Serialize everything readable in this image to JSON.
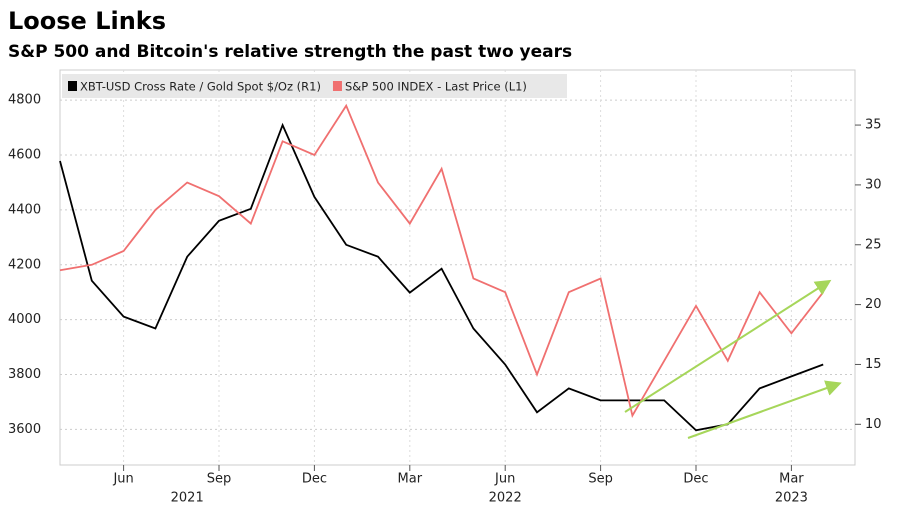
{
  "chart_data": {
    "type": "line",
    "title": "Loose Links",
    "subtitle": "S&P 500 and Bitcoin's relative strength the past two years",
    "x": [
      "2021-04",
      "2021-05",
      "2021-06",
      "2021-07",
      "2021-08",
      "2021-09",
      "2021-10",
      "2021-11",
      "2021-12",
      "2022-01",
      "2022-02",
      "2022-03",
      "2022-04",
      "2022-05",
      "2022-06",
      "2022-07",
      "2022-08",
      "2022-09",
      "2022-10",
      "2022-11",
      "2022-12",
      "2023-01",
      "2023-02",
      "2023-03",
      "2023-04"
    ],
    "xlim": [
      "2021-04",
      "2023-05"
    ],
    "xticks": [
      {
        "value": "2021-06",
        "label": "Jun"
      },
      {
        "value": "2021-09",
        "label": "Sep"
      },
      {
        "value": "2021-12",
        "label": "Dec"
      },
      {
        "value": "2022-03",
        "label": "Mar"
      },
      {
        "value": "2022-06",
        "label": "Jun"
      },
      {
        "value": "2022-09",
        "label": "Sep"
      },
      {
        "value": "2022-12",
        "label": "Dec"
      },
      {
        "value": "2023-03",
        "label": "Mar"
      }
    ],
    "x_year_labels": [
      {
        "value": "2021-08",
        "label": "2021"
      },
      {
        "value": "2022-06",
        "label": "2022"
      },
      {
        "value": "2023-03",
        "label": "2023"
      }
    ],
    "series": [
      {
        "name": "XBT-USD Cross Rate / Gold Spot $/Oz (R1)",
        "color": "#000000",
        "axis": "y2",
        "values": [
          32,
          22,
          19,
          18,
          24,
          27,
          28,
          35,
          29,
          25,
          24,
          21,
          23,
          18,
          15,
          11,
          13,
          12,
          12,
          12,
          9.5,
          10,
          13,
          14,
          15
        ]
      },
      {
        "name": "S&P 500 INDEX - Last Price (L1)",
        "color": "#f07070",
        "values": [
          4180,
          4200,
          4250,
          4400,
          4500,
          4450,
          4350,
          4650,
          4600,
          4780,
          4500,
          4350,
          4550,
          4150,
          4100,
          3800,
          4100,
          4150,
          3650,
          3850,
          4050,
          3850,
          4100,
          3950,
          4100
        ]
      }
    ],
    "ylim": [
      3470,
      4910
    ],
    "yticks": [
      3600,
      3800,
      4000,
      4200,
      4400,
      4600,
      4800
    ],
    "y2lim": [
      6.6,
      39.6
    ],
    "y2ticks": [
      10,
      15,
      20,
      25,
      30,
      35
    ],
    "grid": true,
    "legend": "top-left"
  }
}
